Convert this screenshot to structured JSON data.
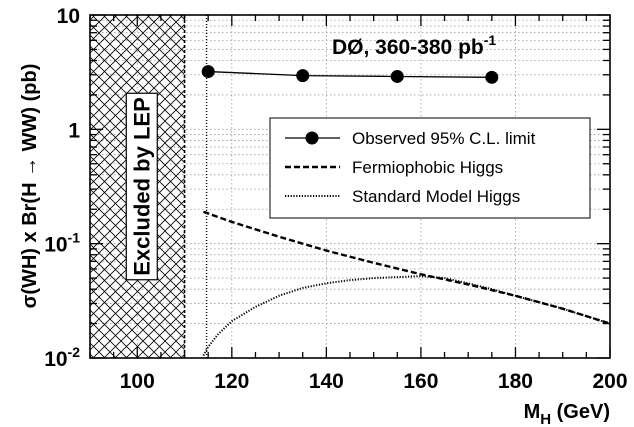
{
  "chart_data": {
    "type": "line",
    "title": "",
    "xlabel": {
      "main": "M",
      "sub": "H",
      "unit": " (GeV)"
    },
    "ylabel": "σ(WH) x Br(H → WW) (pb)",
    "xlim": [
      90,
      200
    ],
    "ylim": [
      0.01,
      10
    ],
    "yscale": "log",
    "grid": true,
    "x_ticks": [
      {
        "value": 100,
        "label": "100"
      },
      {
        "value": 120,
        "label": "120"
      },
      {
        "value": 140,
        "label": "140"
      },
      {
        "value": 160,
        "label": "160"
      },
      {
        "value": 180,
        "label": "180"
      },
      {
        "value": 200,
        "label": "200"
      }
    ],
    "y_ticks": [
      {
        "value": 0.01,
        "base": "10",
        "exp": "-2"
      },
      {
        "value": 0.1,
        "base": "10",
        "exp": "-1"
      },
      {
        "value": 1,
        "base": "1",
        "exp": ""
      },
      {
        "value": 10,
        "base": "10",
        "exp": ""
      }
    ],
    "annotation": {
      "text": "DØ, 360-380 pb",
      "sup": "-1"
    },
    "excluded_region": {
      "x_from": 90,
      "x_to": 110,
      "label": "Excluded by LEP"
    },
    "legend_position": "center-right",
    "series": [
      {
        "name": "Observed 95% C.L. limit",
        "style": "solid-markers",
        "x": [
          115,
          135,
          155,
          175
        ],
        "y": [
          3.2,
          2.95,
          2.9,
          2.85
        ]
      },
      {
        "name": "Fermiophobic Higgs",
        "style": "dashed",
        "x": [
          114,
          120,
          130,
          140,
          150,
          160,
          170,
          180,
          190,
          200
        ],
        "y": [
          0.19,
          0.155,
          0.115,
          0.087,
          0.068,
          0.054,
          0.044,
          0.035,
          0.027,
          0.02
        ]
      },
      {
        "name": "Standard Model Higgs",
        "style": "dotted",
        "x": [
          114,
          115,
          117,
          120,
          125,
          130,
          135,
          140,
          145,
          150,
          155,
          160,
          165,
          170,
          175,
          180,
          190,
          200
        ],
        "y": [
          0.0105,
          0.0125,
          0.016,
          0.021,
          0.028,
          0.035,
          0.041,
          0.045,
          0.048,
          0.05,
          0.051,
          0.052,
          0.05,
          0.045,
          0.04,
          0.035,
          0.027,
          0.02
        ]
      }
    ]
  }
}
